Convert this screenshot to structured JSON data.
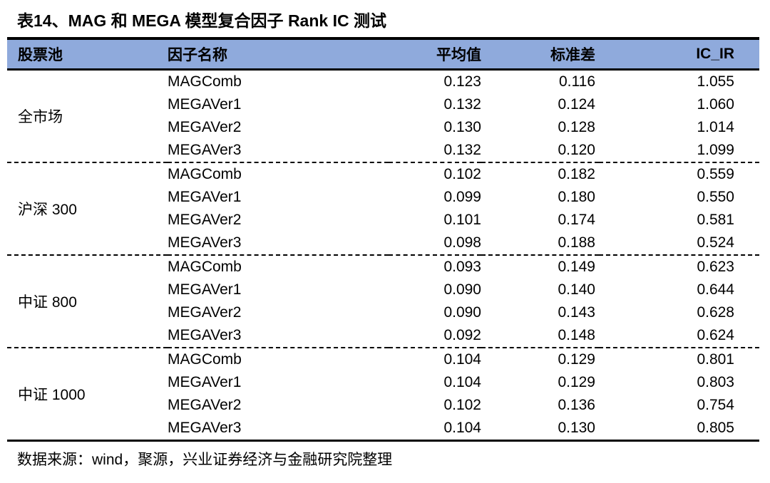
{
  "title": "表14、MAG 和 MEGA 模型复合因子 Rank IC 测试",
  "colors": {
    "header_bg": "#8FAADC",
    "border": "#000000",
    "text": "#000000",
    "background": "#FFFFFF"
  },
  "table": {
    "columns": {
      "pool": "股票池",
      "factor": "因子名称",
      "mean": "平均值",
      "std": "标准差",
      "ic_ir": "IC_IR"
    },
    "groups": [
      {
        "pool": "全市场",
        "rows": [
          {
            "factor": "MAGComb",
            "mean": "0.123",
            "std": "0.116",
            "ic_ir": "1.055"
          },
          {
            "factor": "MEGAVer1",
            "mean": "0.132",
            "std": "0.124",
            "ic_ir": "1.060"
          },
          {
            "factor": "MEGAVer2",
            "mean": "0.130",
            "std": "0.128",
            "ic_ir": "1.014"
          },
          {
            "factor": "MEGAVer3",
            "mean": "0.132",
            "std": "0.120",
            "ic_ir": "1.099"
          }
        ]
      },
      {
        "pool": "沪深 300",
        "rows": [
          {
            "factor": "MAGComb",
            "mean": "0.102",
            "std": "0.182",
            "ic_ir": "0.559"
          },
          {
            "factor": "MEGAVer1",
            "mean": "0.099",
            "std": "0.180",
            "ic_ir": "0.550"
          },
          {
            "factor": "MEGAVer2",
            "mean": "0.101",
            "std": "0.174",
            "ic_ir": "0.581"
          },
          {
            "factor": "MEGAVer3",
            "mean": "0.098",
            "std": "0.188",
            "ic_ir": "0.524"
          }
        ]
      },
      {
        "pool": "中证 800",
        "rows": [
          {
            "factor": "MAGComb",
            "mean": "0.093",
            "std": "0.149",
            "ic_ir": "0.623"
          },
          {
            "factor": "MEGAVer1",
            "mean": "0.090",
            "std": "0.140",
            "ic_ir": "0.644"
          },
          {
            "factor": "MEGAVer2",
            "mean": "0.090",
            "std": "0.143",
            "ic_ir": "0.628"
          },
          {
            "factor": "MEGAVer3",
            "mean": "0.092",
            "std": "0.148",
            "ic_ir": "0.624"
          }
        ]
      },
      {
        "pool": "中证 1000",
        "rows": [
          {
            "factor": "MAGComb",
            "mean": "0.104",
            "std": "0.129",
            "ic_ir": "0.801"
          },
          {
            "factor": "MEGAVer1",
            "mean": "0.104",
            "std": "0.129",
            "ic_ir": "0.803"
          },
          {
            "factor": "MEGAVer2",
            "mean": "0.102",
            "std": "0.136",
            "ic_ir": "0.754"
          },
          {
            "factor": "MEGAVer3",
            "mean": "0.104",
            "std": "0.130",
            "ic_ir": "0.805"
          }
        ]
      }
    ]
  },
  "footer": {
    "source": "数据来源：wind，聚源，兴业证券经济与金融研究院整理"
  }
}
